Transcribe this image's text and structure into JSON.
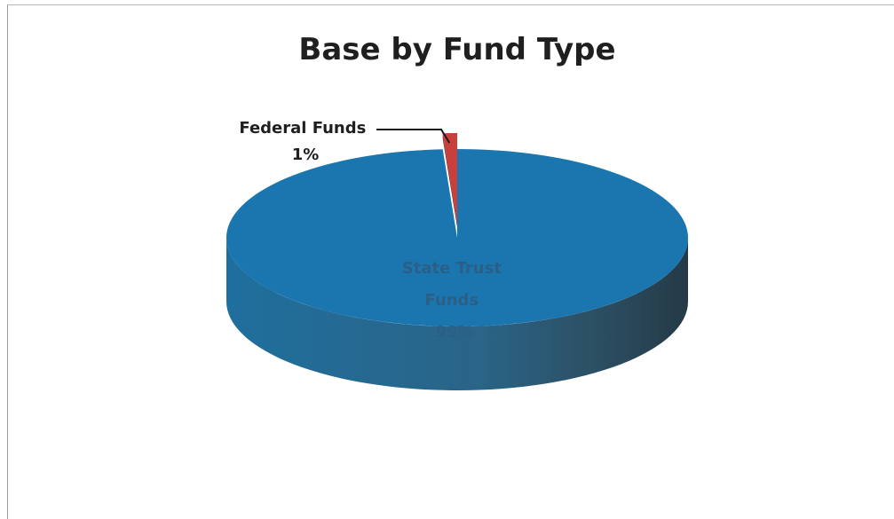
{
  "chart_data": {
    "type": "pie",
    "title": "Base by Fund Type",
    "slices": [
      {
        "label_lines": [
          "Federal Funds",
          "1%"
        ],
        "value": 1,
        "color": "#c8403d"
      },
      {
        "label_lines": [
          "State Trust",
          "Funds",
          "99%"
        ],
        "value": 99,
        "color": "#1b76b0"
      }
    ],
    "style": "3d"
  }
}
